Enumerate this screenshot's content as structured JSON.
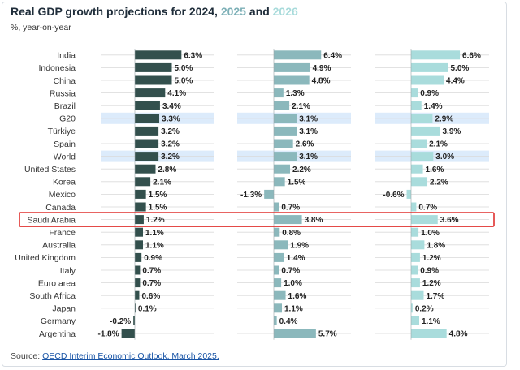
{
  "title": {
    "prefix": "Real GDP growth projections for 2024, ",
    "y2025": "2025",
    "and": " and ",
    "y2026": "2026"
  },
  "subtitle": "%, year-on-year",
  "source": {
    "label": "Source: ",
    "link": "OECD Interim Economic Outlook, March 2025."
  },
  "colors": {
    "y2024": "#33504d",
    "y2025": "#8bb8bc",
    "y2026": "#a9dcdc",
    "aggregate_highlight": "#dcebfb",
    "selection_box": "#e0312f",
    "gridline": "#d9d9d9"
  },
  "chart_data": {
    "type": "bar",
    "orientation": "horizontal",
    "categories": [
      "India",
      "Indonesia",
      "China",
      "Russia",
      "Brazil",
      "G20",
      "Türkiye",
      "Spain",
      "World",
      "United States",
      "Korea",
      "Mexico",
      "Canada",
      "Saudi Arabia",
      "France",
      "Australia",
      "United Kingdom",
      "Italy",
      "Euro area",
      "South Africa",
      "Japan",
      "Germany",
      "Argentina"
    ],
    "series": [
      {
        "values": [
          6.3,
          5.0,
          5.0,
          4.1,
          3.4,
          3.3,
          3.2,
          3.2,
          3.2,
          2.8,
          2.1,
          1.5,
          1.5,
          1.2,
          1.1,
          1.1,
          0.9,
          0.7,
          0.7,
          0.6,
          0.1,
          -0.2,
          -1.8
        ],
        "labels": [
          "6.3%",
          "5.0%",
          "5.0%",
          "4.1%",
          "3.4%",
          "3.3%",
          "3.2%",
          "3.2%",
          "3.2%",
          "2.8%",
          "2.1%",
          "1.5%",
          "1.5%",
          "1.2%",
          "1.1%",
          "1.1%",
          "0.9%",
          "0.7%",
          "0.7%",
          "0.6%",
          "0.1%",
          "-0.2%",
          "-1.8%"
        ]
      },
      {
        "values": [
          6.4,
          4.9,
          4.8,
          1.3,
          2.1,
          3.1,
          3.1,
          2.6,
          3.1,
          2.2,
          1.5,
          -1.3,
          0.7,
          3.8,
          0.8,
          1.9,
          1.4,
          0.7,
          1.0,
          1.6,
          1.1,
          0.4,
          5.7
        ],
        "labels": [
          "6.4%",
          "4.9%",
          "4.8%",
          "1.3%",
          "2.1%",
          "3.1%",
          "3.1%",
          "2.6%",
          "3.1%",
          "2.2%",
          "1.5%",
          "-1.3%",
          "0.7%",
          "3.8%",
          "0.8%",
          "1.9%",
          "1.4%",
          "0.7%",
          "1.0%",
          "1.6%",
          "1.1%",
          "0.4%",
          "5.7%"
        ]
      },
      {
        "values": [
          6.6,
          5.0,
          4.4,
          0.9,
          1.4,
          2.9,
          3.9,
          2.1,
          3.0,
          1.6,
          2.2,
          -0.6,
          0.7,
          3.6,
          1.0,
          1.8,
          1.2,
          0.9,
          1.2,
          1.7,
          0.2,
          1.1,
          4.8
        ],
        "labels": [
          "6.6%",
          "5.0%",
          "4.4%",
          "0.9%",
          "1.4%",
          "2.9%",
          "3.9%",
          "2.1%",
          "3.0%",
          "1.6%",
          "2.2%",
          "-0.6%",
          "0.7%",
          "3.6%",
          "1.0%",
          "1.8%",
          "1.2%",
          "0.9%",
          "1.2%",
          "1.7%",
          "0.2%",
          "1.1%",
          "4.8%"
        ]
      }
    ],
    "highlighted_rows": [
      "G20",
      "World"
    ],
    "boxed_row": "Saudi Arabia",
    "grid": true,
    "legend": "none"
  }
}
